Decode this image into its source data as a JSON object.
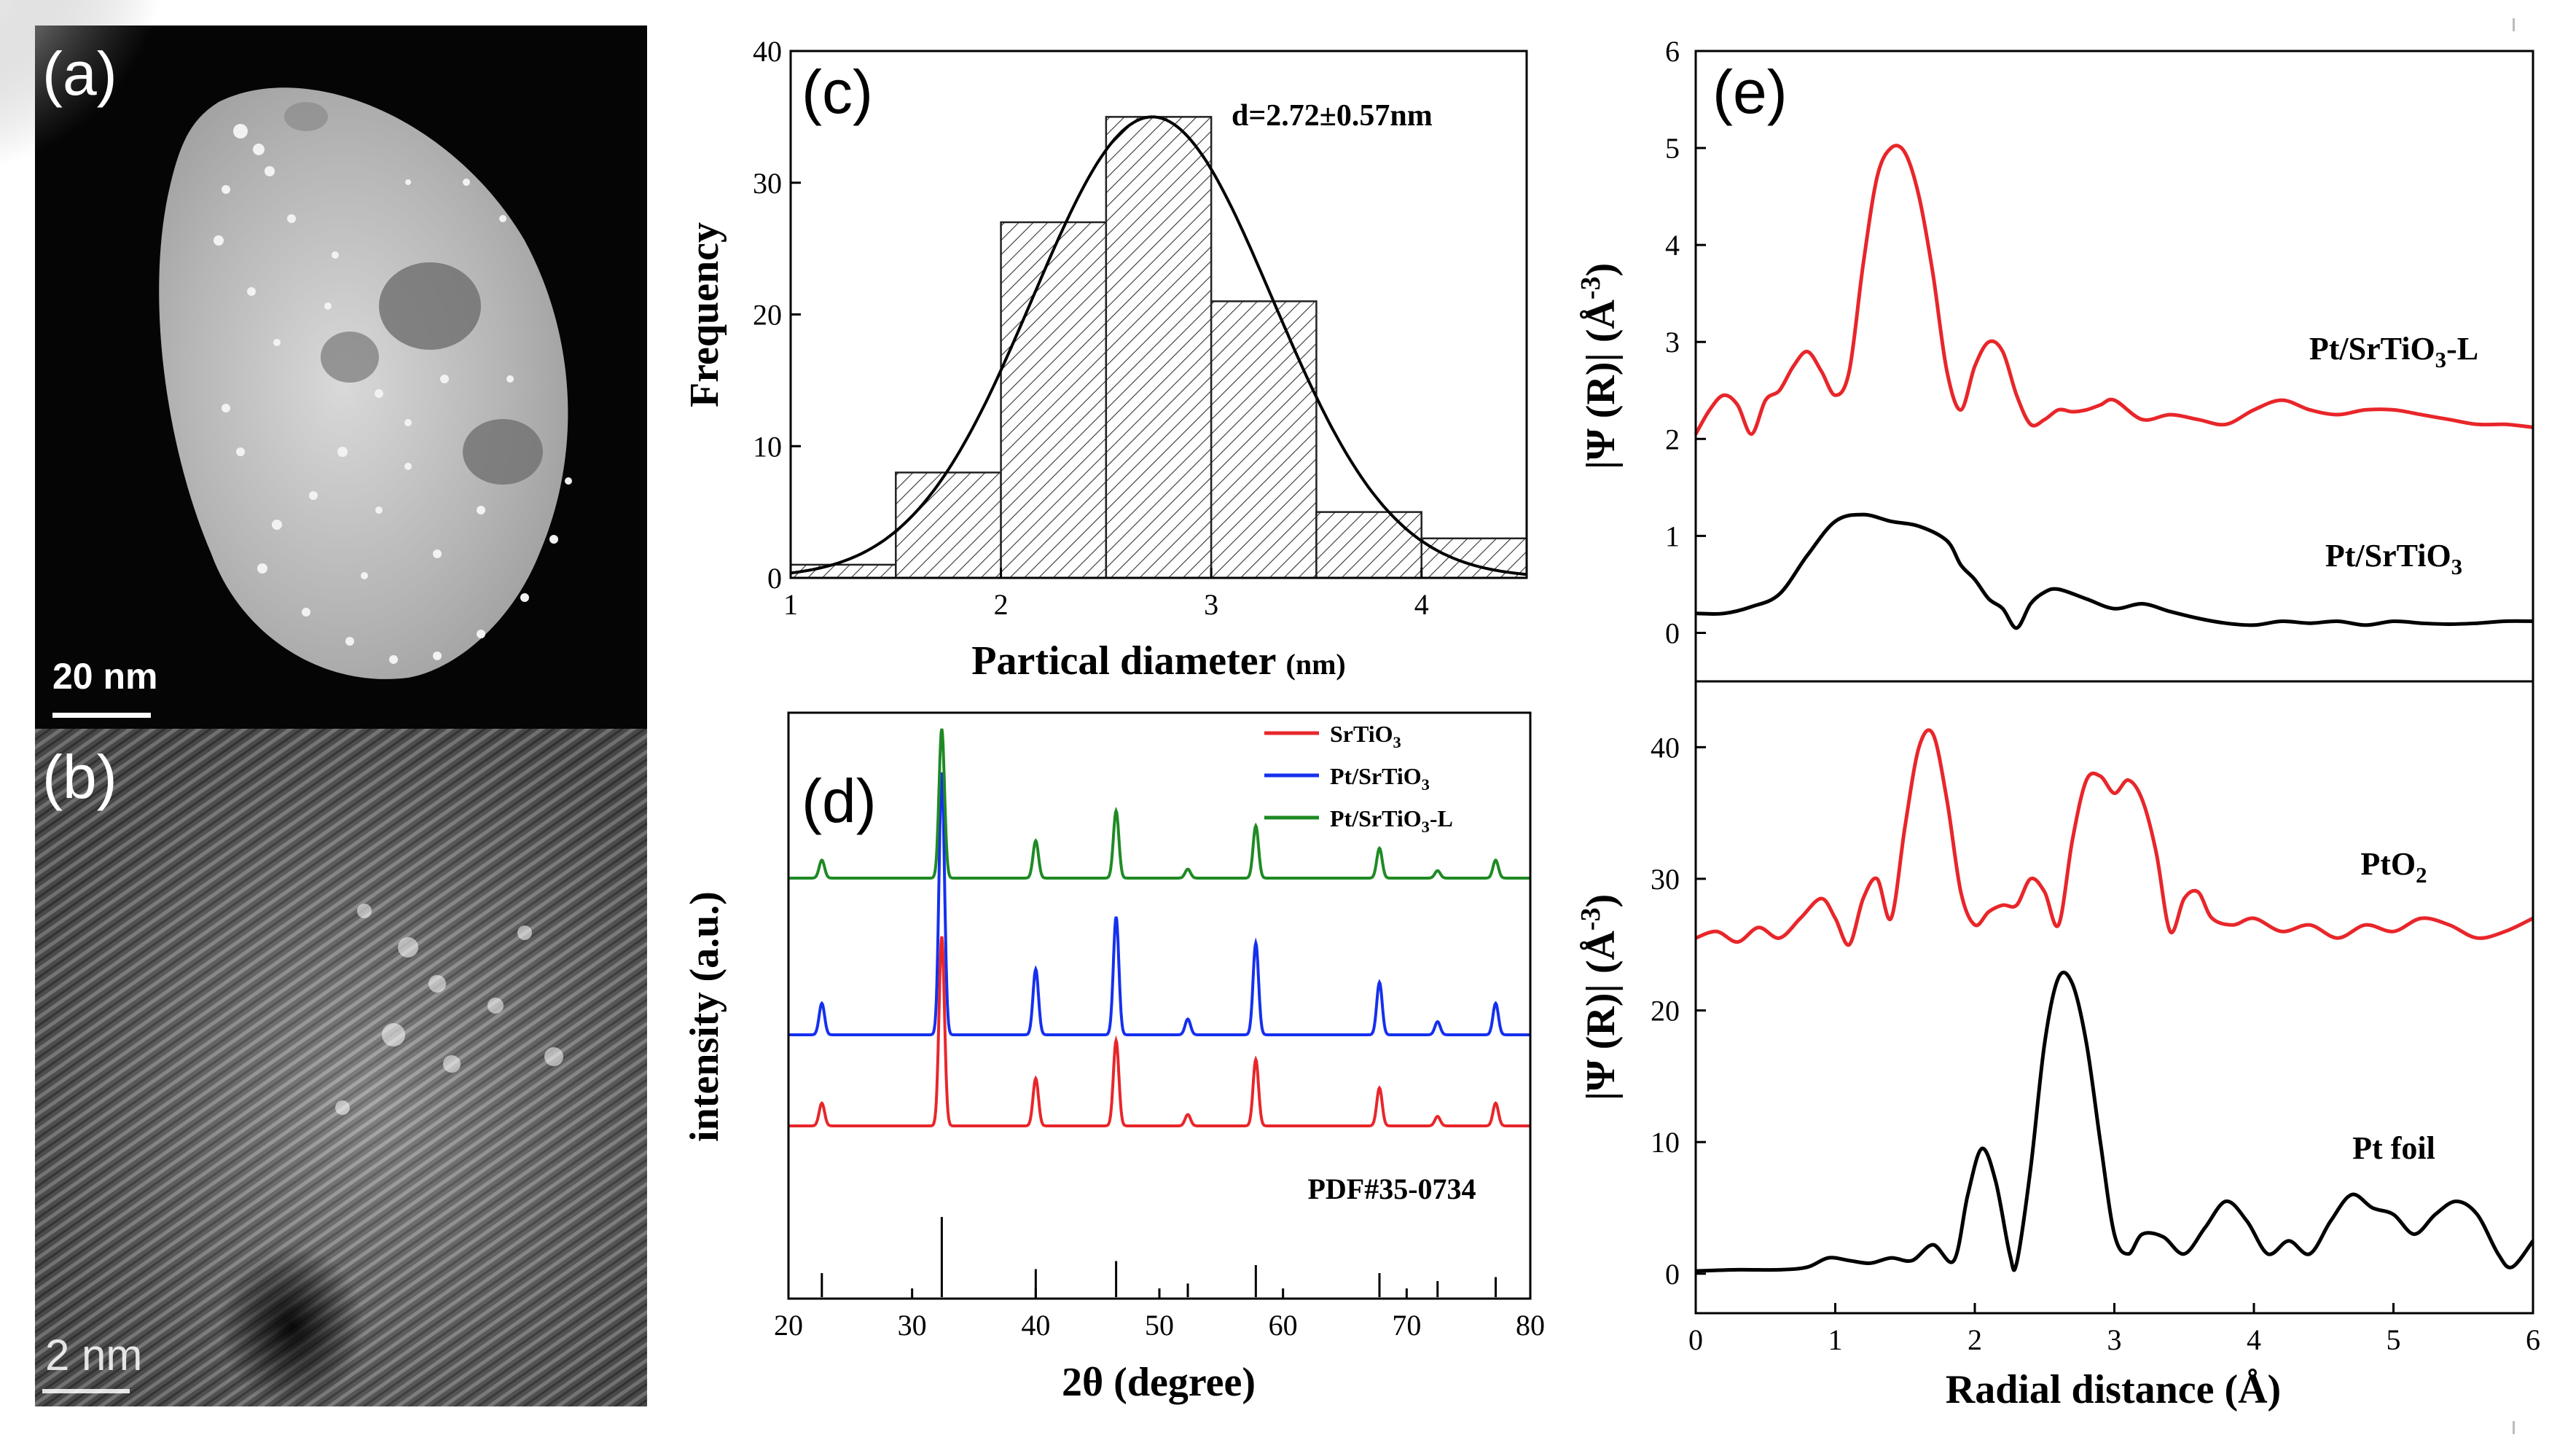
{
  "panel_labels": {
    "a": "(a)",
    "b": "(b)",
    "c": "(c)",
    "d": "(d)",
    "e": "(e)"
  },
  "scale_bars": {
    "a": "20 nm",
    "b": "2 nm"
  },
  "colors": {
    "red": "#e8262a",
    "blue": "#1530ee",
    "green": "#1f8a24",
    "black": "#000000"
  },
  "chart_data": [
    {
      "id": "c",
      "type": "bar",
      "categories": [
        "1-1.5",
        "1.5-2",
        "2-2.5",
        "2.5-3",
        "3-3.5",
        "3.5-4",
        "4-4.5"
      ],
      "bin_edges": [
        1,
        1.5,
        2,
        2.5,
        3,
        3.5,
        4,
        4.5
      ],
      "values": [
        1,
        8,
        27,
        35,
        21,
        5,
        3
      ],
      "fit": {
        "type": "gaussian",
        "mean": 2.72,
        "sigma": 0.57,
        "peak": 35
      },
      "annotation": "d=2.72±0.57nm",
      "xlabel": "Partical diameter (nm)",
      "ylabel": "Frequency",
      "xlim": [
        1,
        4.5
      ],
      "ylim": [
        0,
        40
      ],
      "xticks": [
        1,
        2,
        3,
        4
      ],
      "yticks": [
        0,
        10,
        20,
        30,
        40
      ]
    },
    {
      "id": "d",
      "type": "line",
      "xlabel": "2θ (degree)",
      "ylabel": "intensity (a.u.)",
      "xlim": [
        20,
        80
      ],
      "xticks": [
        20,
        30,
        40,
        50,
        60,
        70,
        80
      ],
      "peaks": [
        {
          "x": 22.7,
          "h": 0.12
        },
        {
          "x": 32.4,
          "h": 1.0
        },
        {
          "x": 40.0,
          "h": 0.25
        },
        {
          "x": 46.5,
          "h": 0.45
        },
        {
          "x": 52.3,
          "h": 0.06
        },
        {
          "x": 57.8,
          "h": 0.35
        },
        {
          "x": 67.8,
          "h": 0.2
        },
        {
          "x": 72.5,
          "h": 0.05
        },
        {
          "x": 77.2,
          "h": 0.12
        }
      ],
      "series": [
        {
          "name": "SrTiO3",
          "sub": "3",
          "base": "SrTiO",
          "suffix": "",
          "color": "#e8262a",
          "scale": 0.45
        },
        {
          "name": "Pt/SrTiO3",
          "sub": "3",
          "base": "Pt/SrTiO",
          "suffix": "",
          "color": "#1530ee",
          "scale": 1.0
        },
        {
          "name": "Pt/SrTiO3-L",
          "sub": "3",
          "base": "Pt/SrTiO",
          "suffix": "-L",
          "color": "#1f8a24",
          "scale": 0.95
        }
      ],
      "reference": {
        "label": "PDF#35-0734",
        "lines": [
          {
            "x": 22.7,
            "h": 0.3
          },
          {
            "x": 32.4,
            "h": 1.0
          },
          {
            "x": 40.0,
            "h": 0.35
          },
          {
            "x": 46.5,
            "h": 0.45
          },
          {
            "x": 52.3,
            "h": 0.17
          },
          {
            "x": 57.8,
            "h": 0.4
          },
          {
            "x": 67.8,
            "h": 0.3
          },
          {
            "x": 72.5,
            "h": 0.2
          },
          {
            "x": 77.2,
            "h": 0.25
          }
        ]
      }
    },
    {
      "id": "e_top",
      "type": "line",
      "ylabel": "|Ψ (R)| (Å-3)",
      "xlim": [
        0,
        6
      ],
      "ylim": [
        -0.5,
        6
      ],
      "yticks": [
        0,
        1,
        2,
        3,
        4,
        5,
        6
      ],
      "series": [
        {
          "name": "Pt/SrTiO3-L",
          "base": "Pt/SrTiO",
          "sub": "3",
          "suffix": "-L",
          "color": "#e8262a",
          "x": [
            0,
            0.1,
            0.2,
            0.3,
            0.4,
            0.5,
            0.6,
            0.7,
            0.8,
            0.9,
            1.0,
            1.1,
            1.2,
            1.3,
            1.4,
            1.5,
            1.6,
            1.7,
            1.8,
            1.9,
            2.0,
            2.1,
            2.2,
            2.3,
            2.4,
            2.5,
            2.6,
            2.7,
            2.8,
            2.9,
            3.0,
            3.2,
            3.4,
            3.6,
            3.8,
            4.0,
            4.2,
            4.4,
            4.6,
            4.8,
            5.0,
            5.2,
            5.4,
            5.6,
            5.8,
            6.0
          ],
          "y": [
            2.05,
            2.3,
            2.45,
            2.35,
            2.05,
            2.4,
            2.5,
            2.75,
            2.9,
            2.7,
            2.45,
            2.7,
            3.8,
            4.7,
            5.0,
            4.95,
            4.5,
            3.7,
            2.7,
            2.3,
            2.75,
            3.0,
            2.9,
            2.45,
            2.15,
            2.2,
            2.3,
            2.28,
            2.3,
            2.35,
            2.4,
            2.2,
            2.25,
            2.2,
            2.15,
            2.3,
            2.4,
            2.3,
            2.25,
            2.3,
            2.3,
            2.25,
            2.2,
            2.15,
            2.15,
            2.12
          ]
        },
        {
          "name": "Pt/SrTiO3",
          "base": "Pt/SrTiO",
          "sub": "3",
          "suffix": "",
          "color": "#000000",
          "x": [
            0,
            0.2,
            0.4,
            0.6,
            0.8,
            1.0,
            1.2,
            1.4,
            1.6,
            1.8,
            1.9,
            2.0,
            2.1,
            2.2,
            2.3,
            2.4,
            2.5,
            2.6,
            2.8,
            3.0,
            3.2,
            3.4,
            3.6,
            3.8,
            4.0,
            4.2,
            4.4,
            4.6,
            4.8,
            5.0,
            5.2,
            5.4,
            5.6,
            5.8,
            6.0
          ],
          "y": [
            0.2,
            0.2,
            0.27,
            0.4,
            0.8,
            1.15,
            1.22,
            1.15,
            1.1,
            0.95,
            0.7,
            0.55,
            0.35,
            0.25,
            0.05,
            0.3,
            0.42,
            0.45,
            0.35,
            0.25,
            0.3,
            0.22,
            0.15,
            0.1,
            0.08,
            0.12,
            0.1,
            0.12,
            0.08,
            0.12,
            0.1,
            0.09,
            0.1,
            0.12,
            0.12
          ]
        }
      ]
    },
    {
      "id": "e_bottom",
      "type": "line",
      "xlabel": "Radial distance (Å)",
      "ylabel": "|Ψ (R)| (Å-3)",
      "xlim": [
        0,
        6
      ],
      "ylim": [
        -3,
        45
      ],
      "xticks": [
        0,
        1,
        2,
        3,
        4,
        5,
        6
      ],
      "yticks": [
        0,
        10,
        20,
        30,
        40
      ],
      "series": [
        {
          "name": "PtO2",
          "base": "PtO",
          "sub": "2",
          "suffix": "",
          "color": "#e8262a",
          "x": [
            0,
            0.15,
            0.3,
            0.45,
            0.6,
            0.75,
            0.9,
            1.0,
            1.1,
            1.2,
            1.3,
            1.4,
            1.5,
            1.6,
            1.7,
            1.8,
            1.9,
            2.0,
            2.1,
            2.2,
            2.3,
            2.4,
            2.5,
            2.6,
            2.7,
            2.8,
            2.9,
            3.0,
            3.1,
            3.2,
            3.3,
            3.4,
            3.5,
            3.6,
            3.7,
            3.85,
            4.0,
            4.2,
            4.4,
            4.6,
            4.8,
            5.0,
            5.2,
            5.4,
            5.6,
            5.8,
            6.0
          ],
          "y": [
            25.5,
            26.0,
            25.2,
            26.3,
            25.5,
            27.0,
            28.5,
            27.0,
            25.0,
            28.5,
            30.0,
            27.0,
            34.0,
            40.0,
            41.0,
            36.0,
            29.0,
            26.5,
            27.5,
            28.0,
            28.0,
            30.0,
            29.0,
            26.5,
            33.0,
            37.5,
            37.8,
            36.5,
            37.5,
            36.0,
            32.0,
            26.0,
            28.5,
            29.0,
            27.0,
            26.5,
            27.0,
            26.0,
            26.5,
            25.5,
            26.5,
            26.0,
            27.0,
            26.5,
            25.5,
            26.0,
            27.0
          ]
        },
        {
          "name": "Pt foil",
          "base": "Pt foil",
          "sub": "",
          "suffix": "",
          "color": "#000000",
          "x": [
            0,
            0.3,
            0.6,
            0.8,
            0.95,
            1.1,
            1.25,
            1.4,
            1.55,
            1.7,
            1.85,
            1.95,
            2.05,
            2.15,
            2.25,
            2.3,
            2.4,
            2.5,
            2.6,
            2.7,
            2.8,
            2.9,
            3.0,
            3.1,
            3.2,
            3.35,
            3.5,
            3.65,
            3.8,
            3.95,
            4.1,
            4.25,
            4.4,
            4.55,
            4.7,
            4.85,
            5.0,
            5.15,
            5.3,
            5.45,
            5.6,
            5.75,
            5.85,
            6.0
          ],
          "y": [
            0.2,
            0.3,
            0.3,
            0.5,
            1.2,
            1.0,
            0.8,
            1.2,
            1.0,
            2.2,
            1.0,
            6.0,
            9.5,
            7.0,
            1.5,
            0.8,
            8.0,
            17.5,
            22.5,
            22.0,
            17.5,
            10.0,
            3.0,
            1.5,
            3.0,
            2.8,
            1.5,
            3.5,
            5.5,
            4.0,
            1.5,
            2.5,
            1.5,
            4.0,
            6.0,
            5.0,
            4.5,
            3.0,
            4.5,
            5.5,
            4.5,
            1.5,
            0.5,
            2.5
          ]
        }
      ]
    }
  ]
}
